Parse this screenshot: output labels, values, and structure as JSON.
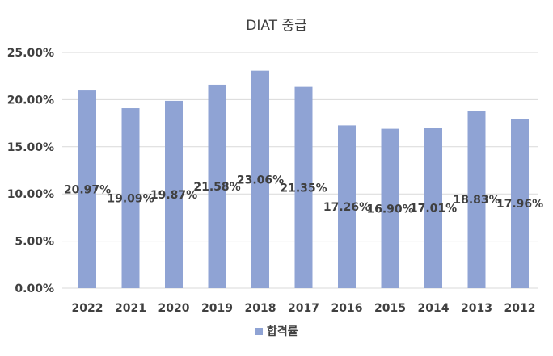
{
  "chart_data": {
    "type": "bar",
    "title": "DIAT 중급",
    "xlabel": "",
    "ylabel": "",
    "categories": [
      "2022",
      "2021",
      "2020",
      "2019",
      "2018",
      "2017",
      "2016",
      "2015",
      "2014",
      "2013",
      "2012"
    ],
    "series": [
      {
        "name": "합격률",
        "values": [
          20.97,
          19.09,
          19.87,
          21.58,
          23.06,
          21.35,
          17.26,
          16.9,
          17.01,
          18.83,
          17.96
        ],
        "labels": [
          "20.97%",
          "19.09%",
          "19.87%",
          "21.58%",
          "23.06%",
          "21.35%",
          "17.26%",
          "16.90%",
          "17.01%",
          "18.83%",
          "17.96%"
        ],
        "color": "#8fa3d4"
      }
    ],
    "ylim": [
      0,
      25
    ],
    "yticks": [
      0,
      5,
      10,
      15,
      20,
      25
    ],
    "yticklabels": [
      "0.00%",
      "5.00%",
      "10.00%",
      "15.00%",
      "20.00%",
      "25.00%"
    ],
    "grid": true,
    "legend": "bottom",
    "gridColor": "#d9d9d9"
  }
}
